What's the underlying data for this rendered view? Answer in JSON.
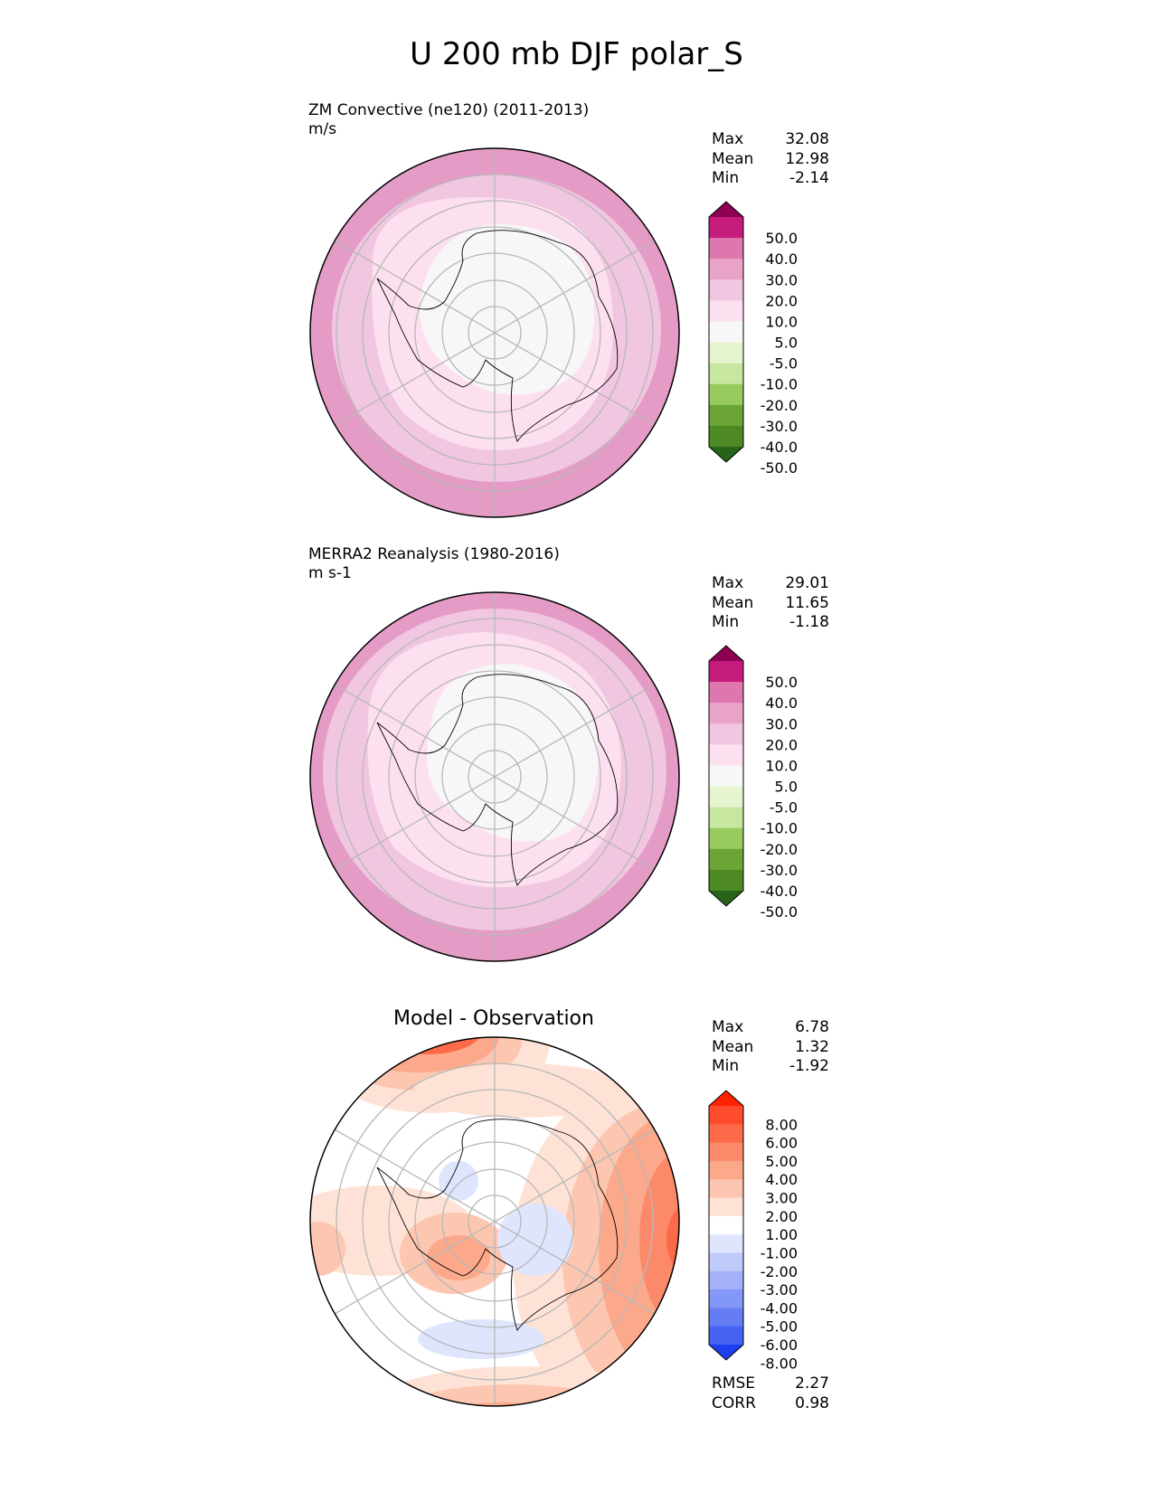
{
  "title": "U 200 mb DJF polar_S",
  "panels": [
    {
      "id": "test",
      "title_line1": "ZM Convective (ne120) (2011-2013)",
      "title_line2": "m/s",
      "stats": [
        {
          "label": "Max",
          "value": "32.08"
        },
        {
          "label": "Mean",
          "value": "12.98"
        },
        {
          "label": "Min",
          "value": "-2.14"
        }
      ],
      "colorbar": {
        "labels": [
          "50.0",
          "40.0",
          "30.0",
          "20.0",
          "10.0",
          "5.0",
          "-5.0",
          "-10.0",
          "-20.0",
          "-30.0",
          "-40.0",
          "-50.0"
        ],
        "colors": [
          "#8e0152",
          "#c51b7d",
          "#de77ae",
          "#e9a3c9",
          "#f1c6e0",
          "#fde0ef",
          "#f7f7f7",
          "#e6f5d0",
          "#c7e7a0",
          "#98cb5e",
          "#6aa535",
          "#4d8a24",
          "#276419"
        ]
      }
    },
    {
      "id": "reference",
      "title_line1": "MERRA2 Reanalysis (1980-2016)",
      "title_line2": "m s-1",
      "stats": [
        {
          "label": "Max",
          "value": "29.01"
        },
        {
          "label": "Mean",
          "value": "11.65"
        },
        {
          "label": "Min",
          "value": "-1.18"
        }
      ],
      "colorbar": {
        "labels": [
          "50.0",
          "40.0",
          "30.0",
          "20.0",
          "10.0",
          "5.0",
          "-5.0",
          "-10.0",
          "-20.0",
          "-30.0",
          "-40.0",
          "-50.0"
        ],
        "colors": [
          "#8e0152",
          "#c51b7d",
          "#de77ae",
          "#e9a3c9",
          "#f1c6e0",
          "#fde0ef",
          "#f7f7f7",
          "#e6f5d0",
          "#c7e7a0",
          "#98cb5e",
          "#6aa535",
          "#4d8a24",
          "#276419"
        ]
      }
    },
    {
      "id": "difference",
      "title_center": "Model - Observation",
      "stats": [
        {
          "label": "Max",
          "value": "6.78"
        },
        {
          "label": "Mean",
          "value": "1.32"
        },
        {
          "label": "Min",
          "value": "-1.92"
        }
      ],
      "bottom_stats": [
        {
          "label": "RMSE",
          "value": "2.27"
        },
        {
          "label": "CORR",
          "value": "0.98"
        }
      ],
      "colorbar": {
        "labels": [
          "8.00",
          "6.00",
          "5.00",
          "4.00",
          "3.00",
          "2.00",
          "1.00",
          "-1.00",
          "-2.00",
          "-3.00",
          "-4.00",
          "-5.00",
          "-6.00",
          "-8.00"
        ],
        "colors": [
          "#ff2200",
          "#fe4b2c",
          "#fc6a4a",
          "#fc8a6a",
          "#fca88a",
          "#fdc6b0",
          "#fee2d6",
          "#ffffff",
          "#dfe5fd",
          "#c0cbfb",
          "#a2b1f9",
          "#8397f7",
          "#647df5",
          "#4563f3",
          "#1e3ff0"
        ]
      }
    }
  ]
}
